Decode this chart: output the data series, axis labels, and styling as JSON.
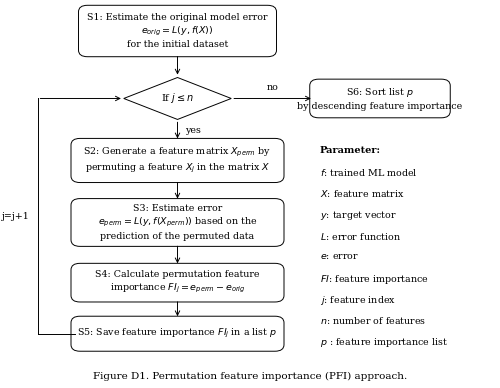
{
  "title": "Figure D1. Permutation feature importance (PFI) approach.",
  "bg_color": "#ffffff",
  "s1_text": "S1: Estimate the original model error\n$e_{orig} = L(y, f(X))$\nfor the initial dataset",
  "diamond_text": "If $j \\leq n$",
  "s6_text": "S6: Sort list $p$\nby descending feature importance",
  "s2_text": "S2: Generate a feature matrix $X_{perm}$ by\npermuting a feature $X_j$ in the matrix $X$",
  "s3_text": "S3: Estimate error\n$e_{perm} = L(y, f(X_{perm}))$ based on the\nprediction of the permuted data",
  "s4_text": "S4: Calculate permutation feature\nimportance $FI_j = e_{perm} - e_{orig}$",
  "s5_text": "S5: Save feature importance $FI_j$ in a list $p$",
  "param_bold": "Parameter:",
  "param_lines": [
    "$f$: trained ML model",
    "$X$: feature matrix",
    "$y$: target vector",
    "$L$: error function",
    "$e$: error",
    "$FI$: feature importance",
    "$j$: feature index",
    "$n$: number of features",
    "$p$ : feature importance list"
  ],
  "loop_label": "j=j+1",
  "yes_label": "yes",
  "no_label": "no"
}
